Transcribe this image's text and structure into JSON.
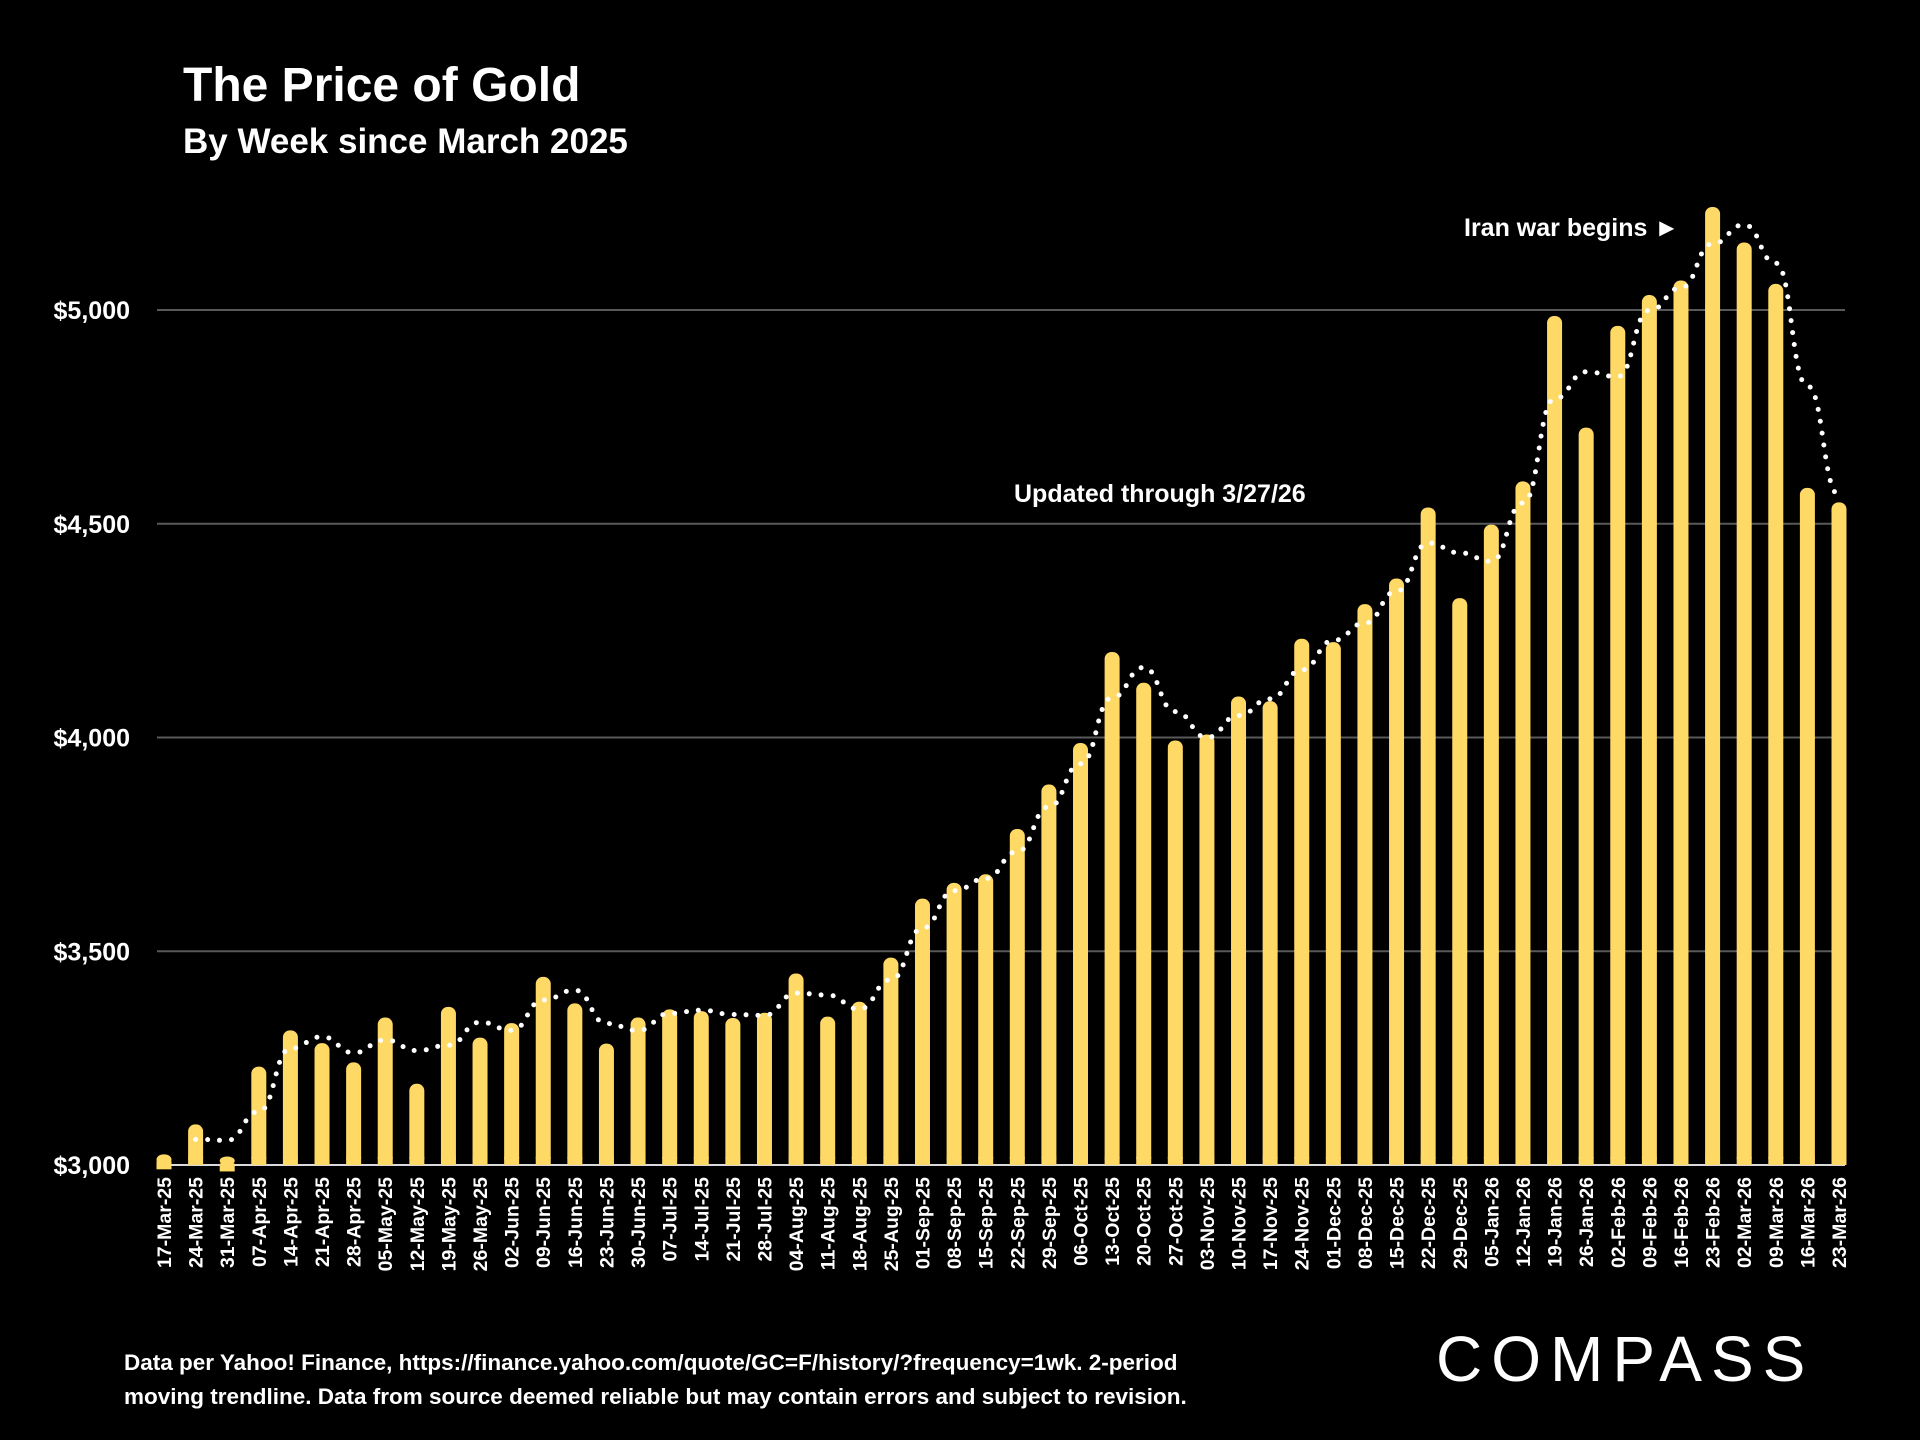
{
  "chart_data": {
    "type": "bar",
    "title": "The Price of Gold",
    "subtitle": "By Week since March 2025",
    "xlabel": "",
    "ylabel": "",
    "ylim": [
      3000,
      5300
    ],
    "yticks": [
      3000,
      3500,
      4000,
      4500,
      5000
    ],
    "ytick_labels": [
      "$3,000",
      "$3,500",
      "$4,000",
      "$4,500",
      "$5,000"
    ],
    "grid": true,
    "bar_color": "#FFD966",
    "trendline": {
      "type": "2-period moving average",
      "style": "dotted",
      "color": "#FFFFFF"
    },
    "categories": [
      "17-Mar-25",
      "24-Mar-25",
      "31-Mar-25",
      "07-Apr-25",
      "14-Apr-25",
      "21-Apr-25",
      "28-Apr-25",
      "05-May-25",
      "12-May-25",
      "19-May-25",
      "26-May-25",
      "02-Jun-25",
      "09-Jun-25",
      "16-Jun-25",
      "23-Jun-25",
      "30-Jun-25",
      "07-Jul-25",
      "14-Jul-25",
      "21-Jul-25",
      "28-Jul-25",
      "04-Aug-25",
      "11-Aug-25",
      "18-Aug-25",
      "25-Aug-25",
      "01-Sep-25",
      "08-Sep-25",
      "15-Sep-25",
      "22-Sep-25",
      "29-Sep-25",
      "06-Oct-25",
      "13-Oct-25",
      "20-Oct-25",
      "27-Oct-25",
      "03-Nov-25",
      "10-Nov-25",
      "17-Nov-25",
      "24-Nov-25",
      "01-Dec-25",
      "08-Dec-25",
      "15-Dec-25",
      "22-Dec-25",
      "29-Dec-25",
      "05-Jan-26",
      "12-Jan-26",
      "19-Jan-26",
      "26-Jan-26",
      "02-Feb-26",
      "09-Feb-26",
      "16-Feb-26",
      "23-Feb-26",
      "02-Mar-26",
      "09-Mar-26",
      "16-Mar-26",
      "23-Mar-26"
    ],
    "values": [
      3025,
      3095,
      3020,
      3230,
      3315,
      3285,
      3240,
      3345,
      3190,
      3370,
      3298,
      3332,
      3440,
      3378,
      3284,
      3345,
      3364,
      3360,
      3344,
      3356,
      3448,
      3347,
      3382,
      3485,
      3623,
      3660,
      3680,
      3786,
      3890,
      3987,
      4200,
      4128,
      3993,
      4007,
      4096,
      4085,
      4231,
      4223,
      4312,
      4372,
      4538,
      4326,
      4498,
      4599,
      4986,
      4725,
      4963,
      5035,
      5069,
      5241,
      5158,
      5061,
      4584,
      4550
    ],
    "annotations": [
      "Iran war begins ►",
      "Updated through 3/27/26"
    ]
  },
  "footer": {
    "line1": "Data per Yahoo! Finance, https://finance.yahoo.com/quote/GC=F/history/?frequency=1wk. 2-period",
    "line2": "moving trendline. Data from source deemed reliable but may contain errors and subject to revision."
  },
  "logo": "COMPASS"
}
